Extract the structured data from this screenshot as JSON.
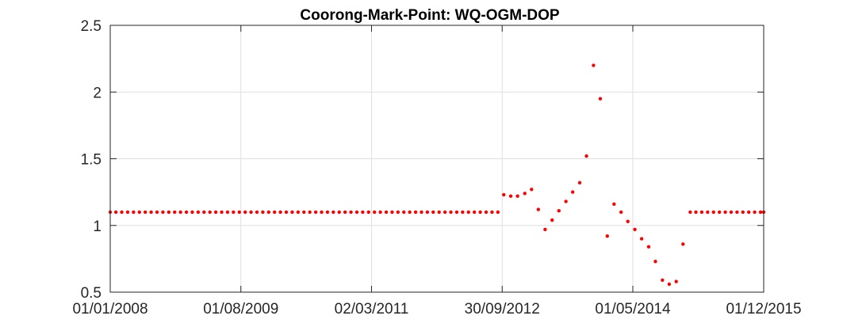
{
  "chart_data": {
    "type": "scatter",
    "title": "Coorong-Mark-Point: WQ-OGM-DOP",
    "xlabel": "",
    "ylabel": "",
    "xlim": [
      "2008-01-01",
      "2015-12-01"
    ],
    "ylim": [
      0.5,
      2.5
    ],
    "xticks": [
      "01/01/2008",
      "01/08/2009",
      "02/03/2011",
      "30/09/2012",
      "01/05/2014",
      "01/12/2015"
    ],
    "yticks": [
      "0.5",
      "1",
      "1.5",
      "2",
      "2.5"
    ],
    "grid": true,
    "marker_color": "#ff0000",
    "series": [
      {
        "points": [
          [
            "2008-01-01",
            1.1
          ],
          [
            "2008-01-26",
            1.1
          ],
          [
            "2008-02-21",
            1.1
          ],
          [
            "2008-03-18",
            1.1
          ],
          [
            "2008-04-13",
            1.1
          ],
          [
            "2008-05-09",
            1.1
          ],
          [
            "2008-06-04",
            1.1
          ],
          [
            "2008-06-30",
            1.1
          ],
          [
            "2008-07-26",
            1.1
          ],
          [
            "2008-08-21",
            1.1
          ],
          [
            "2008-09-16",
            1.1
          ],
          [
            "2008-10-12",
            1.1
          ],
          [
            "2008-11-07",
            1.1
          ],
          [
            "2008-12-03",
            1.1
          ],
          [
            "2008-12-29",
            1.1
          ],
          [
            "2009-01-24",
            1.1
          ],
          [
            "2009-02-19",
            1.1
          ],
          [
            "2009-03-17",
            1.1
          ],
          [
            "2009-04-12",
            1.1
          ],
          [
            "2009-05-08",
            1.1
          ],
          [
            "2009-06-03",
            1.1
          ],
          [
            "2009-06-29",
            1.1
          ],
          [
            "2009-07-25",
            1.1
          ],
          [
            "2009-08-20",
            1.1
          ],
          [
            "2009-09-15",
            1.1
          ],
          [
            "2009-10-11",
            1.1
          ],
          [
            "2009-11-06",
            1.1
          ],
          [
            "2009-12-02",
            1.1
          ],
          [
            "2009-12-28",
            1.1
          ],
          [
            "2010-01-23",
            1.1
          ],
          [
            "2010-02-18",
            1.1
          ],
          [
            "2010-03-16",
            1.1
          ],
          [
            "2010-04-11",
            1.1
          ],
          [
            "2010-05-07",
            1.1
          ],
          [
            "2010-06-02",
            1.1
          ],
          [
            "2010-06-28",
            1.1
          ],
          [
            "2010-07-24",
            1.1
          ],
          [
            "2010-08-19",
            1.1
          ],
          [
            "2010-09-14",
            1.1
          ],
          [
            "2010-10-10",
            1.1
          ],
          [
            "2010-11-05",
            1.1
          ],
          [
            "2010-12-01",
            1.1
          ],
          [
            "2010-12-27",
            1.1
          ],
          [
            "2011-01-22",
            1.1
          ],
          [
            "2011-02-17",
            1.1
          ],
          [
            "2011-03-15",
            1.1
          ],
          [
            "2011-04-10",
            1.1
          ],
          [
            "2011-05-06",
            1.1
          ],
          [
            "2011-06-01",
            1.1
          ],
          [
            "2011-06-27",
            1.1
          ],
          [
            "2011-07-23",
            1.1
          ],
          [
            "2011-08-18",
            1.1
          ],
          [
            "2011-09-13",
            1.1
          ],
          [
            "2011-10-09",
            1.1
          ],
          [
            "2011-11-04",
            1.1
          ],
          [
            "2011-11-30",
            1.1
          ],
          [
            "2011-12-26",
            1.1
          ],
          [
            "2012-01-21",
            1.1
          ],
          [
            "2012-02-16",
            1.1
          ],
          [
            "2012-03-13",
            1.1
          ],
          [
            "2012-04-08",
            1.1
          ],
          [
            "2012-05-04",
            1.1
          ],
          [
            "2012-05-30",
            1.1
          ],
          [
            "2012-06-25",
            1.1
          ],
          [
            "2012-07-21",
            1.1
          ],
          [
            "2012-08-16",
            1.1
          ],
          [
            "2012-09-11",
            1.1
          ],
          [
            "2012-10-07",
            1.23
          ],
          [
            "2012-11-07",
            1.22
          ],
          [
            "2012-12-07",
            1.22
          ],
          [
            "2013-01-08",
            1.24
          ],
          [
            "2013-02-07",
            1.27
          ],
          [
            "2013-03-09",
            1.12
          ],
          [
            "2013-04-08",
            0.97
          ],
          [
            "2013-05-09",
            1.04
          ],
          [
            "2013-06-08",
            1.11
          ],
          [
            "2013-07-09",
            1.18
          ],
          [
            "2013-08-08",
            1.25
          ],
          [
            "2013-09-08",
            1.32
          ],
          [
            "2013-10-08",
            1.52
          ],
          [
            "2013-11-08",
            2.2
          ],
          [
            "2013-12-08",
            1.95
          ],
          [
            "2014-01-08",
            0.92
          ],
          [
            "2014-02-07",
            1.16
          ],
          [
            "2014-03-10",
            1.1
          ],
          [
            "2014-04-09",
            1.03
          ],
          [
            "2014-05-10",
            0.97
          ],
          [
            "2014-06-09",
            0.9
          ],
          [
            "2014-07-10",
            0.84
          ],
          [
            "2014-08-09",
            0.73
          ],
          [
            "2014-09-09",
            0.59
          ],
          [
            "2014-10-09",
            0.56
          ],
          [
            "2014-11-09",
            0.58
          ],
          [
            "2014-12-09",
            0.86
          ],
          [
            "2015-01-10",
            1.1
          ],
          [
            "2015-02-04",
            1.1
          ],
          [
            "2015-03-02",
            1.1
          ],
          [
            "2015-03-28",
            1.1
          ],
          [
            "2015-04-23",
            1.1
          ],
          [
            "2015-05-19",
            1.1
          ],
          [
            "2015-06-14",
            1.1
          ],
          [
            "2015-07-10",
            1.1
          ],
          [
            "2015-08-05",
            1.1
          ],
          [
            "2015-08-31",
            1.1
          ],
          [
            "2015-09-26",
            1.1
          ],
          [
            "2015-10-22",
            1.1
          ],
          [
            "2015-11-17",
            1.1
          ],
          [
            "2015-12-01",
            1.1
          ]
        ]
      }
    ]
  }
}
